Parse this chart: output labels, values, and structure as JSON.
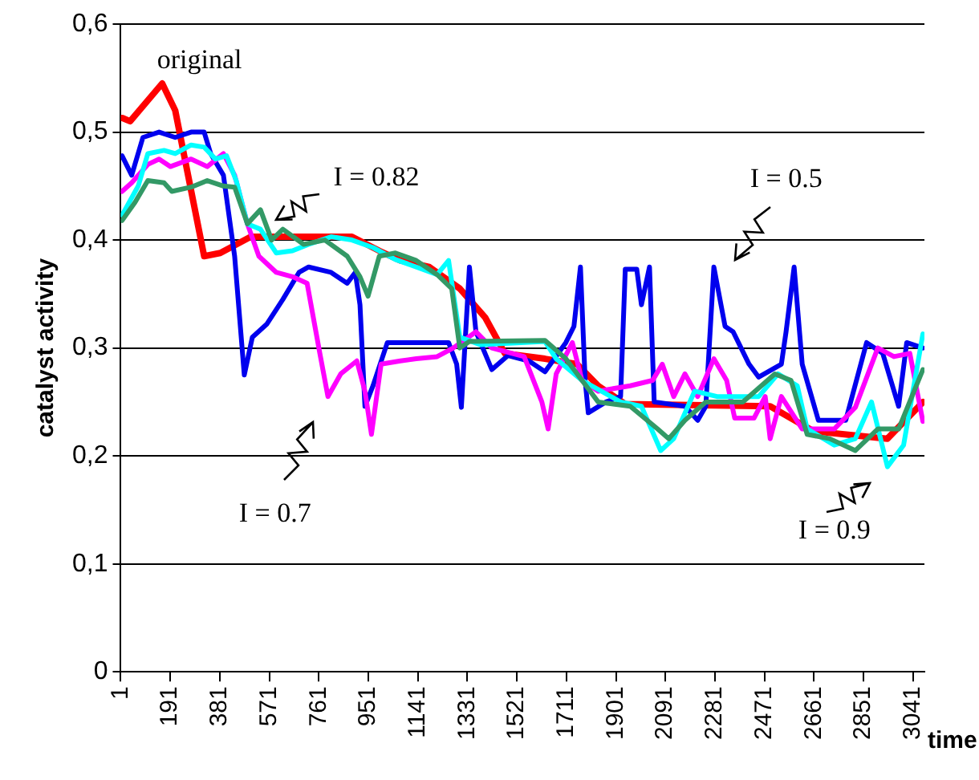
{
  "chart_data": {
    "type": "line",
    "xlabel": "time",
    "ylabel": "catalyst activity",
    "xlim": [
      1,
      3085
    ],
    "xticks": [
      1,
      191,
      381,
      571,
      761,
      951,
      1141,
      1331,
      1521,
      1711,
      1901,
      2091,
      2281,
      2471,
      2661,
      2851,
      3041
    ],
    "ylim": [
      0,
      0.6
    ],
    "yticks": [
      {
        "value": 0,
        "label": "0"
      },
      {
        "value": 0.1,
        "label": "0,1"
      },
      {
        "value": 0.2,
        "label": "0,2"
      },
      {
        "value": 0.3,
        "label": "0,3"
      },
      {
        "value": 0.4,
        "label": "0,4"
      },
      {
        "value": 0.5,
        "label": "0,5"
      },
      {
        "value": 0.6,
        "label": "0,6"
      }
    ],
    "grid": "y",
    "legend": false,
    "marker": "none",
    "line_style": "solid",
    "series": [
      {
        "name": "I = 0.82",
        "color": "#339966",
        "x": [
          6,
          56,
          105,
          167,
          197,
          271,
          333,
          395,
          438,
          487,
          537,
          580,
          623,
          703,
          784,
          870,
          919,
          950,
          993,
          1055,
          1135,
          1215,
          1271,
          1302,
          1339,
          1629,
          1709,
          1771,
          1833,
          1956,
          2061,
          2104,
          2166,
          2246,
          2388,
          2511,
          2573,
          2635,
          2721,
          2820,
          2906,
          2986,
          3079
        ],
        "values": [
          0.418,
          0.435,
          0.455,
          0.453,
          0.445,
          0.449,
          0.455,
          0.45,
          0.449,
          0.415,
          0.428,
          0.4,
          0.41,
          0.396,
          0.4,
          0.385,
          0.366,
          0.348,
          0.385,
          0.388,
          0.381,
          0.368,
          0.355,
          0.3,
          0.306,
          0.307,
          0.29,
          0.27,
          0.25,
          0.246,
          0.225,
          0.216,
          0.233,
          0.25,
          0.25,
          0.276,
          0.27,
          0.22,
          0.216,
          0.205,
          0.225,
          0.225,
          0.28
        ]
      },
      {
        "name": "I = 0.9",
        "color": "#00ffff",
        "x": [
          6,
          68,
          105,
          167,
          210,
          271,
          321,
          364,
          407,
          444,
          487,
          537,
          598,
          660,
          722,
          808,
          888,
          969,
          1055,
          1135,
          1215,
          1259,
          1302,
          1382,
          1629,
          1672,
          1771,
          1919,
          1999,
          2073,
          2123,
          2203,
          2289,
          2449,
          2523,
          2597,
          2635,
          2739,
          2820,
          2882,
          2943,
          3005,
          3079
        ],
        "values": [
          0.423,
          0.45,
          0.48,
          0.483,
          0.48,
          0.488,
          0.486,
          0.475,
          0.478,
          0.455,
          0.415,
          0.41,
          0.388,
          0.39,
          0.396,
          0.403,
          0.4,
          0.393,
          0.382,
          0.375,
          0.368,
          0.381,
          0.31,
          0.303,
          0.306,
          0.29,
          0.27,
          0.25,
          0.246,
          0.205,
          0.216,
          0.26,
          0.255,
          0.255,
          0.276,
          0.265,
          0.225,
          0.21,
          0.216,
          0.25,
          0.19,
          0.21,
          0.313
        ]
      },
      {
        "name": "I = 0.7",
        "color": "#ff00ff",
        "x": [
          6,
          43,
          105,
          148,
          191,
          271,
          333,
          395,
          438,
          487,
          531,
          598,
          660,
          716,
          765,
          796,
          845,
          907,
          938,
          963,
          1000,
          1074,
          1135,
          1215,
          1277,
          1364,
          1425,
          1549,
          1617,
          1641,
          1672,
          1734,
          1771,
          1833,
          1956,
          2042,
          2079,
          2123,
          2166,
          2215,
          2277,
          2326,
          2357,
          2431,
          2474,
          2493,
          2536,
          2616,
          2739,
          2820,
          2906,
          2968,
          3029,
          3079
        ],
        "values": [
          0.445,
          0.453,
          0.47,
          0.475,
          0.468,
          0.475,
          0.468,
          0.48,
          0.46,
          0.415,
          0.385,
          0.37,
          0.366,
          0.36,
          0.295,
          0.255,
          0.276,
          0.288,
          0.26,
          0.22,
          0.285,
          0.288,
          0.29,
          0.292,
          0.3,
          0.315,
          0.3,
          0.292,
          0.25,
          0.225,
          0.276,
          0.305,
          0.27,
          0.26,
          0.265,
          0.27,
          0.285,
          0.255,
          0.276,
          0.255,
          0.29,
          0.27,
          0.235,
          0.235,
          0.255,
          0.216,
          0.255,
          0.225,
          0.225,
          0.245,
          0.3,
          0.292,
          0.295,
          0.232
        ]
      },
      {
        "name": "I = 0.5",
        "color": "#0000ee",
        "x": [
          6,
          43,
          86,
          148,
          210,
          271,
          321,
          346,
          395,
          438,
          475,
          506,
          561,
          623,
          685,
          722,
          808,
          870,
          901,
          919,
          938,
          969,
          1024,
          1074,
          1259,
          1290,
          1308,
          1339,
          1364,
          1425,
          1487,
          1567,
          1629,
          1709,
          1740,
          1765,
          1783,
          1795,
          1863,
          1919,
          1937,
          1981,
          1999,
          2030,
          2048,
          2166,
          2215,
          2246,
          2277,
          2320,
          2351,
          2412,
          2449,
          2536,
          2554,
          2585,
          2616,
          2678,
          2783,
          2863,
          2925,
          2986,
          3017,
          3079
        ],
        "values": [
          0.478,
          0.46,
          0.495,
          0.5,
          0.495,
          0.5,
          0.5,
          0.48,
          0.46,
          0.385,
          0.275,
          0.31,
          0.322,
          0.345,
          0.37,
          0.375,
          0.37,
          0.36,
          0.37,
          0.34,
          0.246,
          0.265,
          0.305,
          0.305,
          0.305,
          0.285,
          0.245,
          0.375,
          0.315,
          0.28,
          0.293,
          0.288,
          0.278,
          0.305,
          0.32,
          0.375,
          0.27,
          0.24,
          0.25,
          0.255,
          0.373,
          0.373,
          0.34,
          0.375,
          0.25,
          0.246,
          0.233,
          0.246,
          0.375,
          0.32,
          0.315,
          0.285,
          0.273,
          0.285,
          0.315,
          0.375,
          0.285,
          0.233,
          0.233,
          0.305,
          0.295,
          0.246,
          0.305,
          0.3
        ]
      },
      {
        "name": "original",
        "color": "#ff0000",
        "x": [
          7,
          37,
          160,
          210,
          321,
          383,
          500,
          888,
          993,
          1074,
          1185,
          1302,
          1400,
          1475,
          1629,
          1752,
          1833,
          1937,
          2493,
          2659,
          2943,
          3080
        ],
        "values": [
          0.513,
          0.51,
          0.545,
          0.52,
          0.385,
          0.388,
          0.403,
          0.403,
          0.39,
          0.381,
          0.375,
          0.355,
          0.328,
          0.295,
          0.29,
          0.285,
          0.265,
          0.248,
          0.246,
          0.223,
          0.216,
          0.25
        ]
      }
    ]
  }
}
